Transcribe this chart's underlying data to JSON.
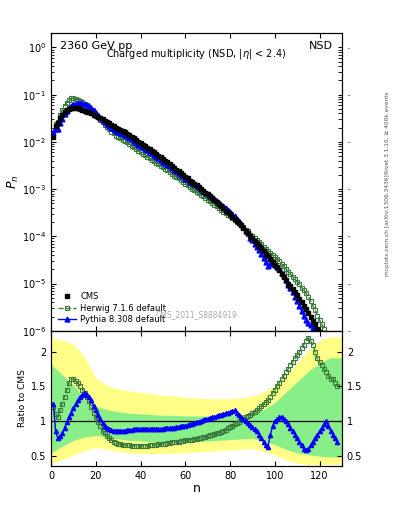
{
  "title_top": "2360 GeV pp",
  "title_right": "NSD",
  "watermark": "CMS_2011_S8884919",
  "right_label1": "Rivet 3.1.10, ≥ 400k events",
  "right_label2": "mcplots.cern.ch [arXiv:1306.3436]",
  "cms_n": [
    1,
    2,
    3,
    4,
    5,
    6,
    7,
    8,
    9,
    10,
    11,
    12,
    13,
    14,
    15,
    16,
    17,
    18,
    19,
    20,
    21,
    22,
    23,
    24,
    25,
    26,
    27,
    28,
    29,
    30,
    31,
    32,
    33,
    34,
    35,
    36,
    37,
    38,
    39,
    40,
    41,
    42,
    43,
    44,
    45,
    46,
    47,
    48,
    49,
    50,
    51,
    52,
    53,
    54,
    55,
    56,
    57,
    58,
    59,
    60,
    61,
    62,
    63,
    64,
    65,
    66,
    67,
    68,
    69,
    70,
    71,
    72,
    73,
    74,
    75,
    76,
    77,
    78,
    79,
    80,
    81,
    82,
    83,
    84,
    85,
    86,
    87,
    88,
    89,
    90,
    91,
    92,
    93,
    94,
    95,
    96,
    97,
    98,
    99,
    100,
    101,
    102,
    103,
    104,
    105,
    106,
    107,
    108,
    109,
    110,
    111,
    112,
    113,
    114,
    115,
    116,
    117,
    118,
    119,
    120,
    121,
    122,
    123,
    124,
    125,
    126,
    127,
    128
  ],
  "cms_pn": [
    0.013,
    0.022,
    0.025,
    0.032,
    0.038,
    0.043,
    0.047,
    0.05,
    0.052,
    0.053,
    0.052,
    0.051,
    0.05,
    0.048,
    0.046,
    0.044,
    0.042,
    0.04,
    0.038,
    0.036,
    0.034,
    0.032,
    0.03,
    0.028,
    0.026,
    0.025,
    0.023,
    0.022,
    0.02,
    0.019,
    0.018,
    0.017,
    0.016,
    0.015,
    0.014,
    0.013,
    0.012,
    0.011,
    0.01,
    0.0095,
    0.0088,
    0.0082,
    0.0076,
    0.007,
    0.0065,
    0.006,
    0.0055,
    0.0051,
    0.0047,
    0.0043,
    0.004,
    0.0037,
    0.0034,
    0.0031,
    0.0028,
    0.0026,
    0.0024,
    0.0022,
    0.002,
    0.0018,
    0.0017,
    0.0015,
    0.0014,
    0.0013,
    0.0012,
    0.0011,
    0.001,
    0.00092,
    0.00084,
    0.00077,
    0.0007,
    0.00064,
    0.00058,
    0.00053,
    0.00048,
    0.00043,
    0.00039,
    0.00035,
    0.00032,
    0.00029,
    0.00026,
    0.00023,
    0.00021,
    0.00019,
    0.00017,
    0.00015,
    0.00013,
    0.00012,
    0.0001,
    9e-05,
    8e-05,
    7.1e-05,
    6.3e-05,
    5.6e-05,
    4.9e-05,
    4.3e-05,
    3.8e-05,
    3.3e-05,
    2.9e-05,
    2.5e-05,
    2.2e-05,
    1.9e-05,
    1.6e-05,
    1.4e-05,
    1.2e-05,
    1e-05,
    8.8e-06,
    7.6e-06,
    6.5e-06,
    5.6e-06,
    4.8e-06,
    4e-06,
    3.4e-06,
    2.9e-06,
    2.4e-06,
    2e-06,
    1.6e-06,
    1.4e-06,
    1.1e-06,
    9.2e-07,
    7.6e-07,
    6.2e-07,
    5.1e-07,
    4.2e-07,
    3.4e-07,
    2.8e-07,
    2.3e-07,
    1.8e-07,
    1.5e-07,
    1.2e-07
  ],
  "herwig_ratio": [
    1.2,
    1.1,
    1.05,
    1.15,
    1.25,
    1.35,
    1.45,
    1.55,
    1.6,
    1.6,
    1.58,
    1.55,
    1.5,
    1.45,
    1.4,
    1.35,
    1.28,
    1.2,
    1.12,
    1.05,
    0.98,
    0.92,
    0.86,
    0.82,
    0.78,
    0.75,
    0.72,
    0.7,
    0.68,
    0.67,
    0.66,
    0.65,
    0.65,
    0.65,
    0.65,
    0.64,
    0.64,
    0.64,
    0.64,
    0.64,
    0.64,
    0.64,
    0.64,
    0.65,
    0.65,
    0.65,
    0.65,
    0.66,
    0.66,
    0.67,
    0.67,
    0.68,
    0.68,
    0.69,
    0.69,
    0.7,
    0.7,
    0.71,
    0.71,
    0.72,
    0.72,
    0.73,
    0.73,
    0.74,
    0.74,
    0.75,
    0.75,
    0.76,
    0.77,
    0.78,
    0.79,
    0.8,
    0.81,
    0.82,
    0.83,
    0.84,
    0.85,
    0.87,
    0.89,
    0.91,
    0.93,
    0.95,
    0.97,
    0.99,
    1.01,
    1.03,
    1.05,
    1.07,
    1.09,
    1.11,
    1.13,
    1.15,
    1.18,
    1.21,
    1.24,
    1.27,
    1.3,
    1.35,
    1.4,
    1.45,
    1.5,
    1.55,
    1.6,
    1.65,
    1.7,
    1.75,
    1.8,
    1.85,
    1.9,
    1.95,
    2.0,
    2.05,
    2.1,
    2.15,
    2.2,
    2.15,
    2.1,
    2.0,
    1.9,
    1.85,
    1.8,
    1.75,
    1.7,
    1.65,
    1.6,
    1.6,
    1.55,
    1.5
  ],
  "pythia_ratio": [
    1.25,
    0.85,
    0.75,
    0.78,
    0.82,
    0.9,
    0.98,
    1.05,
    1.12,
    1.18,
    1.25,
    1.3,
    1.35,
    1.38,
    1.4,
    1.38,
    1.35,
    1.3,
    1.22,
    1.15,
    1.08,
    1.02,
    0.97,
    0.93,
    0.9,
    0.88,
    0.87,
    0.86,
    0.86,
    0.86,
    0.86,
    0.86,
    0.86,
    0.87,
    0.87,
    0.87,
    0.88,
    0.88,
    0.88,
    0.88,
    0.88,
    0.88,
    0.88,
    0.88,
    0.88,
    0.88,
    0.88,
    0.88,
    0.88,
    0.88,
    0.89,
    0.89,
    0.89,
    0.9,
    0.9,
    0.91,
    0.91,
    0.92,
    0.93,
    0.93,
    0.94,
    0.95,
    0.96,
    0.97,
    0.98,
    0.99,
    1.0,
    1.01,
    1.02,
    1.03,
    1.04,
    1.05,
    1.06,
    1.07,
    1.08,
    1.09,
    1.1,
    1.11,
    1.12,
    1.13,
    1.14,
    1.15,
    1.12,
    1.09,
    1.06,
    1.03,
    1.0,
    0.97,
    0.94,
    0.91,
    0.88,
    0.85,
    0.8,
    0.75,
    0.7,
    0.65,
    0.63,
    0.8,
    0.92,
    1.0,
    1.03,
    1.05,
    1.05,
    1.03,
    1.0,
    0.95,
    0.9,
    0.85,
    0.8,
    0.75,
    0.7,
    0.65,
    0.6,
    0.58,
    0.6,
    0.65,
    0.7,
    0.75,
    0.8,
    0.85,
    0.9,
    0.95,
    1.0,
    0.92,
    0.85,
    0.8,
    0.75,
    0.7
  ],
  "cms_color": "black",
  "herwig_color": "#3a7a3a",
  "pythia_color": "blue",
  "band_yellow": "#ffff88",
  "band_green": "#88ee88",
  "ylim_main_lo": 1e-06,
  "ylim_main_hi": 2.0,
  "ylim_ratio_lo": 0.35,
  "ylim_ratio_hi": 2.3,
  "xlim_lo": 0,
  "xlim_hi": 130,
  "yellow_x": [
    0,
    5,
    10,
    15,
    20,
    25,
    30,
    35,
    40,
    45,
    50,
    55,
    60,
    65,
    70,
    75,
    80,
    85,
    90,
    95,
    100,
    105,
    110,
    115,
    120,
    125,
    130
  ],
  "yellow_hi": [
    2.2,
    2.15,
    2.1,
    1.9,
    1.6,
    1.5,
    1.45,
    1.42,
    1.4,
    1.38,
    1.36,
    1.35,
    1.33,
    1.32,
    1.31,
    1.31,
    1.31,
    1.32,
    1.35,
    1.4,
    1.5,
    1.65,
    1.82,
    2.0,
    2.15,
    2.2,
    2.2
  ],
  "yellow_lo": [
    0.4,
    0.45,
    0.52,
    0.58,
    0.63,
    0.6,
    0.57,
    0.55,
    0.54,
    0.54,
    0.54,
    0.54,
    0.55,
    0.56,
    0.57,
    0.58,
    0.59,
    0.6,
    0.61,
    0.57,
    0.52,
    0.45,
    0.4,
    0.38,
    0.38,
    0.38,
    0.38
  ],
  "green_x": [
    0,
    5,
    10,
    15,
    20,
    25,
    30,
    35,
    40,
    45,
    50,
    55,
    60,
    65,
    70,
    75,
    80,
    85,
    90,
    95,
    100,
    105,
    110,
    115,
    120,
    125,
    130
  ],
  "green_hi": [
    1.8,
    1.65,
    1.5,
    1.3,
    1.2,
    1.15,
    1.12,
    1.1,
    1.09,
    1.08,
    1.07,
    1.07,
    1.06,
    1.06,
    1.06,
    1.06,
    1.07,
    1.08,
    1.1,
    1.15,
    1.25,
    1.4,
    1.55,
    1.7,
    1.82,
    1.9,
    1.9
  ],
  "green_lo": [
    0.55,
    0.65,
    0.73,
    0.78,
    0.8,
    0.78,
    0.75,
    0.73,
    0.72,
    0.71,
    0.7,
    0.7,
    0.7,
    0.71,
    0.72,
    0.73,
    0.74,
    0.75,
    0.76,
    0.72,
    0.67,
    0.6,
    0.55,
    0.52,
    0.5,
    0.49,
    0.49
  ]
}
